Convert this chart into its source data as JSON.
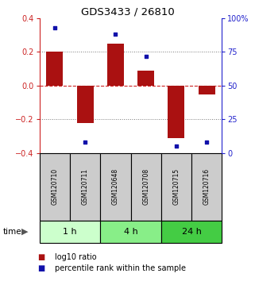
{
  "title": "GDS3433 / 26810",
  "samples": [
    "GSM120710",
    "GSM120711",
    "GSM120648",
    "GSM120708",
    "GSM120715",
    "GSM120716"
  ],
  "log10_ratio": [
    0.2,
    -0.22,
    0.25,
    0.09,
    -0.31,
    -0.05
  ],
  "percentile_rank": [
    93,
    8,
    88,
    72,
    5,
    8
  ],
  "time_groups": [
    {
      "label": "1 h",
      "start": 0,
      "end": 1,
      "color": "#ccffcc"
    },
    {
      "label": "4 h",
      "start": 2,
      "end": 3,
      "color": "#88ee88"
    },
    {
      "label": "24 h",
      "start": 4,
      "end": 5,
      "color": "#44cc44"
    }
  ],
  "bar_color": "#aa1111",
  "dot_color": "#1111aa",
  "bar_width": 0.55,
  "ylim_left": [
    -0.4,
    0.4
  ],
  "ylim_right": [
    0,
    100
  ],
  "yticks_left": [
    -0.4,
    -0.2,
    0.0,
    0.2,
    0.4
  ],
  "yticks_right": [
    0,
    25,
    50,
    75,
    100
  ],
  "left_axis_color": "#cc2222",
  "right_axis_color": "#2222cc",
  "sample_box_color": "#cccccc",
  "legend_bar_label": "log10 ratio",
  "legend_dot_label": "percentile rank within the sample",
  "zero_line_color": "#cc2222",
  "dotted_line_color": "#777777"
}
